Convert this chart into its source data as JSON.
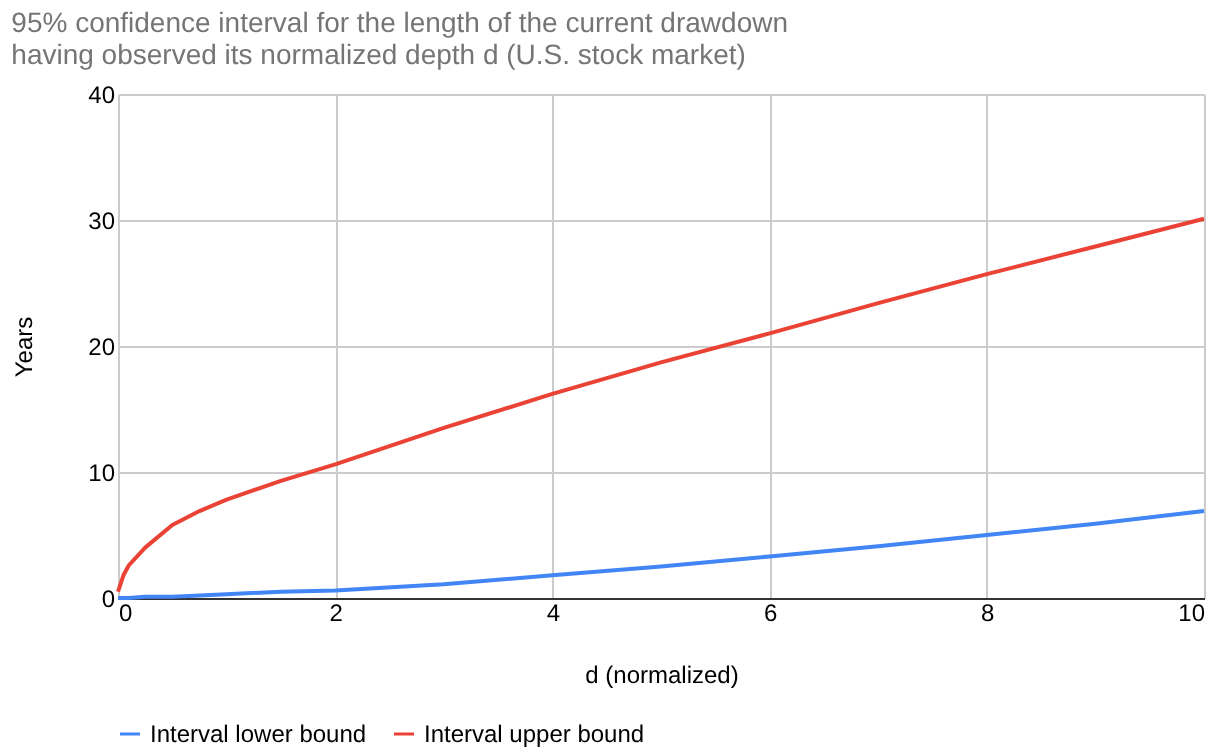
{
  "chart_data": {
    "type": "line",
    "title": "95% confidence interval for the length of the current drawdown having observed its normalized depth d (U.S. stock market)",
    "xlabel": "d (normalized)",
    "ylabel": "Years",
    "x": [
      0,
      0.05,
      0.1,
      0.25,
      0.5,
      0.75,
      1,
      1.5,
      2,
      3,
      4,
      5,
      6,
      7,
      8,
      9,
      10
    ],
    "series": [
      {
        "name": "Interval lower bound",
        "color": "#4285f4",
        "values": [
          0,
          0,
          0,
          0.1,
          0.1,
          0.2,
          0.3,
          0.5,
          0.6,
          1.1,
          1.8,
          2.5,
          3.3,
          4.1,
          5.0,
          5.9,
          6.9
        ]
      },
      {
        "name": "Interval upper bound",
        "color": "#ea4335",
        "values": [
          0.5,
          1.8,
          2.6,
          4.0,
          5.8,
          6.9,
          7.8,
          9.3,
          10.6,
          13.5,
          16.2,
          18.7,
          21.0,
          23.4,
          25.7,
          27.9,
          30.1
        ]
      }
    ],
    "xlim": [
      0,
      10
    ],
    "xticks": [
      0,
      2,
      4,
      6,
      8,
      10
    ],
    "ylim": [
      0,
      40
    ],
    "yticks": [
      0,
      10,
      20,
      30,
      40
    ],
    "grid": true,
    "legend": "bottom",
    "marker": "none",
    "line_style": "solid"
  }
}
